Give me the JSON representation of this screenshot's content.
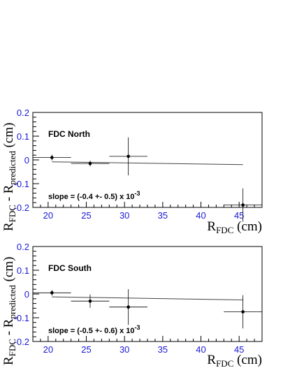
{
  "chart_data": [
    {
      "type": "scatter",
      "title": "FDC North",
      "annotation": {
        "prefix": "slope = (-0.4 +- 0.5) x 10",
        "exp": "-3"
      },
      "xlabel": {
        "main": "R",
        "sub": "FDC",
        "unit": " (cm)"
      },
      "ylabel": {
        "a": "R",
        "a_sub": "FDC",
        "mid": " - R",
        "b_sub": "predicted",
        "unit": " (cm)"
      },
      "xlim": [
        18,
        48
      ],
      "ylim": [
        -0.2,
        0.2
      ],
      "xticks": [
        20,
        25,
        30,
        35,
        40,
        45
      ],
      "yticks": [
        0.2,
        0.1,
        0,
        -0.1,
        -0.2
      ],
      "ytick_labels": [
        "0.2",
        "0.1",
        "0",
        "-0.1",
        "-0.2"
      ],
      "points": [
        {
          "x": 20.5,
          "y": 0.01,
          "xerr": 2.5,
          "yerr": 0.012
        },
        {
          "x": 25.5,
          "y": -0.015,
          "xerr": 2.5,
          "yerr": 0.012
        },
        {
          "x": 30.5,
          "y": 0.015,
          "xerr": 2.5,
          "yerr": 0.08
        },
        {
          "x": 45.5,
          "y": -0.19,
          "xerr": 2.5,
          "yerr": 0.07
        }
      ],
      "fit": {
        "x": [
          20.5,
          45.5
        ],
        "y": [
          -0.008,
          -0.02
        ]
      }
    },
    {
      "type": "scatter",
      "title": "FDC South",
      "annotation": {
        "prefix": "slope = (-0.5 +- 0.6) x 10",
        "exp": "-3"
      },
      "xlabel": {
        "main": "R",
        "sub": "FDC",
        "unit": " (cm)"
      },
      "ylabel": {
        "a": "R",
        "a_sub": "FDC",
        "mid": " - R",
        "b_sub": "predicted",
        "unit": " (cm)"
      },
      "xlim": [
        18,
        48
      ],
      "ylim": [
        -0.2,
        0.2
      ],
      "xticks": [
        20,
        25,
        30,
        35,
        40,
        45
      ],
      "yticks": [
        0.2,
        0.1,
        0,
        -0.1,
        -0.2
      ],
      "ytick_labels": [
        "0.2",
        "0.1",
        "0",
        "-0.1",
        "-0.2"
      ],
      "points": [
        {
          "x": 20.5,
          "y": 0.005,
          "xerr": 2.5,
          "yerr": 0.012
        },
        {
          "x": 25.5,
          "y": -0.03,
          "xerr": 2.5,
          "yerr": 0.028
        },
        {
          "x": 30.5,
          "y": -0.055,
          "xerr": 2.5,
          "yerr": 0.075
        },
        {
          "x": 45.5,
          "y": -0.075,
          "xerr": 2.5,
          "yerr": 0.07
        }
      ],
      "fit": {
        "x": [
          20.5,
          45.5
        ],
        "y": [
          -0.012,
          -0.025
        ]
      }
    }
  ]
}
